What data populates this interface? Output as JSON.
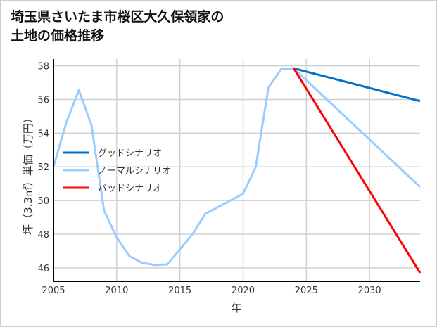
{
  "chart_data": {
    "type": "line",
    "title_lines": [
      "埼玉県さいたま市桜区大久保領家の",
      "土地の価格推移"
    ],
    "xlabel": "年",
    "ylabel": "坪（3.3㎡）単価（万円）",
    "xlim": [
      2005,
      2034
    ],
    "ylim": [
      45.2,
      58.4
    ],
    "xticks": [
      2005,
      2010,
      2015,
      2020,
      2025,
      2030
    ],
    "yticks": [
      46,
      48,
      50,
      52,
      54,
      56,
      58
    ],
    "grid": true,
    "legend_position": "center-left",
    "series": [
      {
        "name": "グッドシナリオ",
        "color": "#0070c8",
        "x": [
          2024,
          2034
        ],
        "y": [
          57.85,
          55.9
        ]
      },
      {
        "name": "ノーマルシナリオ",
        "color": "#99ccff",
        "x": [
          2005,
          2006,
          2007,
          2008,
          2009,
          2010,
          2011,
          2012,
          2013,
          2014,
          2015,
          2016,
          2017,
          2018,
          2019,
          2020,
          2021,
          2022,
          2023,
          2024,
          2034
        ],
        "y": [
          52.0,
          54.6,
          56.55,
          54.5,
          49.4,
          47.8,
          46.7,
          46.3,
          46.17,
          46.2,
          47.1,
          48.0,
          49.2,
          49.6,
          50.0,
          50.4,
          52.0,
          56.7,
          57.8,
          57.85,
          50.8
        ]
      },
      {
        "name": "バッドシナリオ",
        "color": "#ff0000",
        "x": [
          2024,
          2034
        ],
        "y": [
          57.85,
          45.7
        ]
      }
    ]
  }
}
